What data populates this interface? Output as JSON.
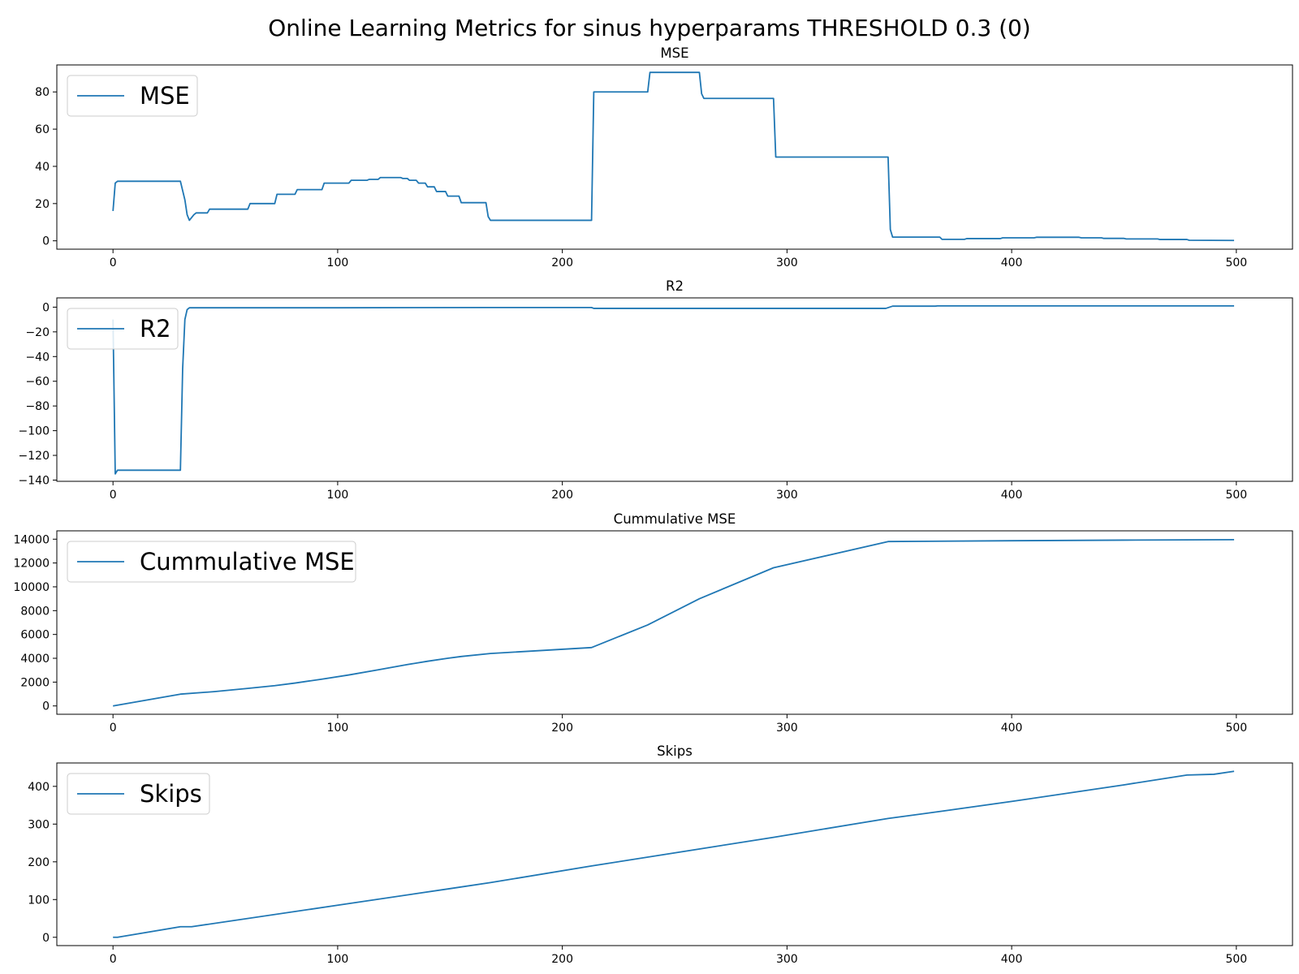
{
  "figure": {
    "title": "Online Learning Metrics for sinus hyperparams THRESHOLD 0.3 (0)"
  },
  "colors": {
    "series": "#1f77b4",
    "axes": "#000000",
    "legend_border": "#cccccc"
  },
  "chart_data": [
    {
      "type": "line",
      "title": "MSE",
      "xlabel": "",
      "ylabel": "",
      "xlim": [
        -25,
        525
      ],
      "ylim": [
        -4.5,
        94.5
      ],
      "xticks": [
        0,
        100,
        200,
        300,
        400,
        500
      ],
      "yticks": [
        0,
        20,
        40,
        60,
        80
      ],
      "grid": false,
      "legend_position": "upper left",
      "series": [
        {
          "name": "MSE",
          "points": [
            [
              0,
              16
            ],
            [
              1,
              31
            ],
            [
              2,
              32
            ],
            [
              30,
              32
            ],
            [
              32,
              22
            ],
            [
              33,
              14
            ],
            [
              34,
              11
            ],
            [
              36,
              14
            ],
            [
              37,
              15
            ],
            [
              42,
              15
            ],
            [
              43,
              17
            ],
            [
              60,
              17
            ],
            [
              61,
              20
            ],
            [
              72,
              20
            ],
            [
              73,
              25
            ],
            [
              81,
              25
            ],
            [
              82,
              27.5
            ],
            [
              93,
              27.5
            ],
            [
              94,
              31
            ],
            [
              105,
              31
            ],
            [
              106,
              32.5
            ],
            [
              113,
              32.5
            ],
            [
              114,
              33
            ],
            [
              118,
              33
            ],
            [
              119,
              34
            ],
            [
              128,
              34
            ],
            [
              129,
              33.5
            ],
            [
              131,
              33.5
            ],
            [
              132,
              32.5
            ],
            [
              135,
              32.5
            ],
            [
              136,
              31
            ],
            [
              139,
              31
            ],
            [
              140,
              29
            ],
            [
              143,
              29
            ],
            [
              144,
              26.5
            ],
            [
              148,
              26.5
            ],
            [
              149,
              24
            ],
            [
              154,
              24
            ],
            [
              155,
              20.5
            ],
            [
              166,
              20.5
            ],
            [
              167,
              13
            ],
            [
              168,
              11
            ],
            [
              213,
              11
            ],
            [
              214,
              80
            ],
            [
              238,
              80
            ],
            [
              239,
              90.5
            ],
            [
              261,
              90.5
            ],
            [
              262,
              79
            ],
            [
              263,
              76.5
            ],
            [
              294,
              76.5
            ],
            [
              295,
              45
            ],
            [
              345,
              45
            ],
            [
              346,
              6
            ],
            [
              347,
              2
            ],
            [
              368,
              2
            ],
            [
              369,
              0.8
            ],
            [
              379,
              0.8
            ],
            [
              380,
              1.2
            ],
            [
              395,
              1.2
            ],
            [
              396,
              1.6
            ],
            [
              410,
              1.6
            ],
            [
              411,
              1.9
            ],
            [
              430,
              1.9
            ],
            [
              431,
              1.6
            ],
            [
              440,
              1.6
            ],
            [
              441,
              1.3
            ],
            [
              450,
              1.3
            ],
            [
              451,
              1
            ],
            [
              465,
              1
            ],
            [
              466,
              0.7
            ],
            [
              478,
              0.7
            ],
            [
              479,
              0.3
            ],
            [
              499,
              0.2
            ]
          ]
        }
      ]
    },
    {
      "type": "line",
      "title": "R2",
      "xlabel": "",
      "ylabel": "",
      "xlim": [
        -25,
        525
      ],
      "ylim": [
        -141,
        7.5
      ],
      "xticks": [
        0,
        100,
        200,
        300,
        400,
        500
      ],
      "yticks": [
        0,
        -20,
        -40,
        -60,
        -80,
        -100,
        -120,
        -140
      ],
      "grid": false,
      "legend_position": "upper left",
      "series": [
        {
          "name": "R2",
          "points": [
            [
              0,
              -10
            ],
            [
              1,
              -135
            ],
            [
              2,
              -132
            ],
            [
              30,
              -132
            ],
            [
              31,
              -50
            ],
            [
              32,
              -10
            ],
            [
              33,
              -2
            ],
            [
              34,
              -0.5
            ],
            [
              100,
              -0.5
            ],
            [
              168,
              -0.3
            ],
            [
              213,
              -0.3
            ],
            [
              214,
              -1
            ],
            [
              344,
              -1
            ],
            [
              347,
              0.8
            ],
            [
              366,
              0.8
            ],
            [
              367,
              1
            ],
            [
              499,
              1
            ]
          ]
        }
      ]
    },
    {
      "type": "line",
      "title": "Cummulative MSE",
      "xlabel": "",
      "ylabel": "",
      "xlim": [
        -25,
        525
      ],
      "ylim": [
        -700,
        14700
      ],
      "xticks": [
        0,
        100,
        200,
        300,
        400,
        500
      ],
      "yticks": [
        0,
        2000,
        4000,
        6000,
        8000,
        10000,
        12000,
        14000
      ],
      "grid": false,
      "legend_position": "upper left",
      "series": [
        {
          "name": "Cummulative MSE",
          "points": [
            [
              0,
              0
            ],
            [
              30,
              990
            ],
            [
              45,
              1200
            ],
            [
              60,
              1470
            ],
            [
              72,
              1700
            ],
            [
              81,
              1920
            ],
            [
              93,
              2250
            ],
            [
              105,
              2600
            ],
            [
              118,
              3030
            ],
            [
              131,
              3470
            ],
            [
              140,
              3750
            ],
            [
              149,
              4000
            ],
            [
              155,
              4150
            ],
            [
              168,
              4400
            ],
            [
              213,
              4900
            ],
            [
              238,
              6800
            ],
            [
              261,
              9000
            ],
            [
              294,
              11600
            ],
            [
              345,
              13800
            ],
            [
              400,
              13870
            ],
            [
              450,
              13920
            ],
            [
              499,
              13960
            ]
          ]
        }
      ]
    },
    {
      "type": "line",
      "title": "Skips",
      "xlabel": "",
      "ylabel": "",
      "xlim": [
        -25,
        525
      ],
      "ylim": [
        -22,
        462
      ],
      "xticks": [
        0,
        100,
        200,
        300,
        400,
        500
      ],
      "yticks": [
        0,
        100,
        200,
        300,
        400
      ],
      "grid": false,
      "legend_position": "upper left",
      "series": [
        {
          "name": "Skips",
          "points": [
            [
              0,
              0
            ],
            [
              2,
              0
            ],
            [
              30,
              28
            ],
            [
              35,
              28
            ],
            [
              100,
              85
            ],
            [
              150,
              129
            ],
            [
              168,
              145
            ],
            [
              213,
              189
            ],
            [
              261,
              234
            ],
            [
              294,
              265
            ],
            [
              345,
              315
            ],
            [
              370,
              335
            ],
            [
              400,
              360
            ],
            [
              450,
              404
            ],
            [
              478,
              430
            ],
            [
              490,
              432
            ],
            [
              499,
              440
            ]
          ]
        }
      ]
    }
  ]
}
